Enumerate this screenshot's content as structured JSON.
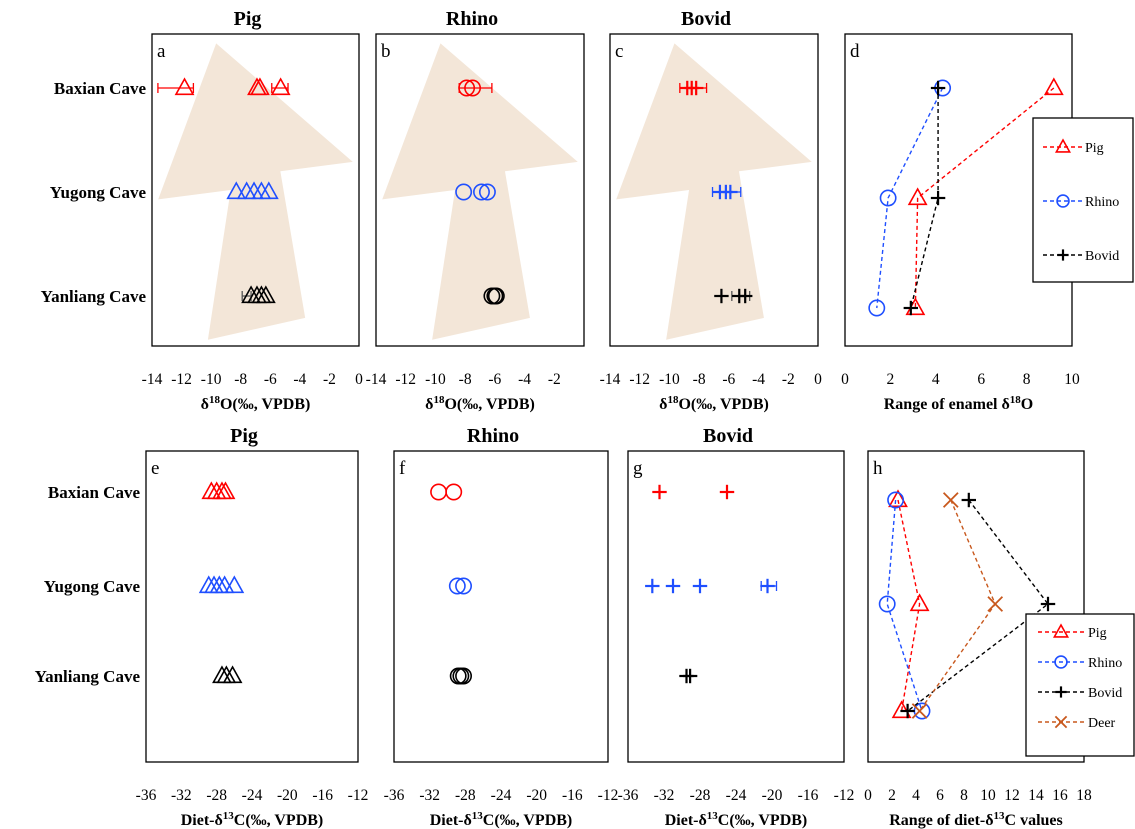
{
  "chart_data": [
    {
      "panel": "a",
      "type": "scatter",
      "title": "Pig",
      "marker": "triangle",
      "xlabel_pre": "δ",
      "xlabel_sup": "18",
      "xlabel_post": "O(‰, VPDB)",
      "xlim": [
        -14,
        0
      ],
      "xticks": [
        -14,
        -12,
        -10,
        -8,
        -6,
        -4,
        -2,
        0
      ],
      "categories": [
        "Baxian Cave",
        "Yugong Cave",
        "Yanliang Cave"
      ],
      "series": [
        {
          "category": "Baxian Cave",
          "color": "#ff0000",
          "points": [
            -11.8,
            -6.9,
            -6.7,
            -5.3
          ],
          "errors": [
            [
              -13.6,
              -11.2
            ],
            [
              -5.9,
              -4.8
            ]
          ]
        },
        {
          "category": "Yugong Cave",
          "color": "#1f4fff",
          "points": [
            -8.3,
            -7.6,
            -7.1,
            -6.6,
            -6.1
          ],
          "errors": []
        },
        {
          "category": "Yanliang Cave",
          "color": "#000000",
          "points": [
            -7.3,
            -6.9,
            -6.6,
            -6.3
          ],
          "errors": [
            [
              -7.9,
              -7.3
            ]
          ]
        }
      ],
      "arrow": true
    },
    {
      "panel": "b",
      "type": "scatter",
      "title": "Rhino",
      "marker": "circle",
      "xlabel_pre": "δ",
      "xlabel_sup": "18",
      "xlabel_post": "O(‰, VPDB)",
      "xlim": [
        -14,
        0
      ],
      "xticks": [
        -14,
        -12,
        -10,
        -8,
        -6,
        -4,
        -2
      ],
      "categories": [
        "Baxian Cave",
        "Yugong Cave",
        "Yanliang Cave"
      ],
      "series": [
        {
          "category": "Baxian Cave",
          "color": "#ff0000",
          "points": [
            -7.9,
            -7.5
          ],
          "errors": [
            [
              -8.4,
              -6.2
            ]
          ]
        },
        {
          "category": "Yugong Cave",
          "color": "#1f4fff",
          "points": [
            -8.1,
            -6.9,
            -6.5
          ],
          "errors": []
        },
        {
          "category": "Yanliang Cave",
          "color": "#000000",
          "points": [
            -6.2,
            -6.0,
            -5.9
          ],
          "errors": []
        }
      ],
      "arrow": true
    },
    {
      "panel": "c",
      "type": "scatter",
      "title": "Bovid",
      "marker": "plus",
      "xlabel_pre": "δ",
      "xlabel_sup": "18",
      "xlabel_post": "O(‰, VPDB)",
      "xlim": [
        -14,
        0
      ],
      "xticks": [
        -14,
        -12,
        -10,
        -8,
        -6,
        -4,
        -2,
        0
      ],
      "categories": [
        "Baxian Cave",
        "Yugong Cave",
        "Yanliang Cave"
      ],
      "series": [
        {
          "category": "Baxian Cave",
          "color": "#ff0000",
          "points": [
            -8.8,
            -8.5,
            -8.2
          ],
          "errors": [
            [
              -9.3,
              -7.5
            ]
          ]
        },
        {
          "category": "Yugong Cave",
          "color": "#1f4fff",
          "points": [
            -6.6,
            -6.2,
            -5.9
          ],
          "errors": [
            [
              -7.1,
              -5.2
            ]
          ]
        },
        {
          "category": "Yanliang Cave",
          "color": "#000000",
          "points": [
            -6.5,
            -5.3,
            -4.9
          ],
          "errors": [
            [
              -5.8,
              -4.6
            ]
          ]
        }
      ],
      "arrow": true
    },
    {
      "panel": "d",
      "type": "line",
      "xlabel": "Range of enamel δ18O",
      "xlabel_pre": "Range of enamel δ",
      "xlabel_sup": "18",
      "xlabel_post": "O",
      "xlim": [
        0,
        10
      ],
      "xticks": [
        0,
        2,
        4,
        6,
        8,
        10
      ],
      "categories": [
        "Baxian Cave",
        "Yugong Cave",
        "Yanliang Cave"
      ],
      "series": [
        {
          "name": "Pig",
          "color": "#ff0000",
          "marker": "triangle",
          "values": [
            9.2,
            3.2,
            3.1
          ]
        },
        {
          "name": "Rhino",
          "color": "#1f4fff",
          "marker": "circle",
          "values": [
            4.3,
            1.9,
            1.4
          ]
        },
        {
          "name": "Bovid",
          "color": "#000000",
          "marker": "plus",
          "values": [
            4.1,
            4.1,
            2.9
          ]
        }
      ],
      "legend": "right"
    },
    {
      "panel": "e",
      "type": "scatter",
      "title": "Pig",
      "marker": "triangle",
      "xlabel_pre": "Diet-δ",
      "xlabel_sup": "13",
      "xlabel_post": "C(‰, VPDB)",
      "xlim": [
        -36,
        -12
      ],
      "xticks": [
        -36,
        -32,
        -28,
        -24,
        -20,
        -16,
        -12
      ],
      "categories": [
        "Baxian Cave",
        "Yugong Cave",
        "Yanliang Cave"
      ],
      "series": [
        {
          "category": "Baxian Cave",
          "color": "#ff0000",
          "points": [
            -28.6,
            -28.0,
            -27.4,
            -27.0
          ],
          "errors": []
        },
        {
          "category": "Yugong Cave",
          "color": "#1f4fff",
          "points": [
            -28.9,
            -28.3,
            -27.7,
            -27.1,
            -26.0
          ],
          "errors": []
        },
        {
          "category": "Yanliang Cave",
          "color": "#000000",
          "points": [
            -27.4,
            -26.9,
            -26.2
          ],
          "errors": []
        }
      ]
    },
    {
      "panel": "f",
      "type": "scatter",
      "title": "Rhino",
      "marker": "circle",
      "xlabel_pre": "Diet-δ",
      "xlabel_sup": "13",
      "xlabel_post": "C(‰, VPDB)",
      "xlim": [
        -36,
        -12
      ],
      "xticks": [
        -36,
        -32,
        -28,
        -24,
        -20,
        -16,
        -12
      ],
      "categories": [
        "Baxian Cave",
        "Yugong Cave",
        "Yanliang Cave"
      ],
      "series": [
        {
          "category": "Baxian Cave",
          "color": "#ff0000",
          "points": [
            -31.0,
            -29.3
          ],
          "errors": []
        },
        {
          "category": "Yugong Cave",
          "color": "#1f4fff",
          "points": [
            -28.9,
            -28.2
          ],
          "errors": []
        },
        {
          "category": "Yanliang Cave",
          "color": "#000000",
          "points": [
            -28.8,
            -28.5,
            -28.2
          ],
          "errors": []
        }
      ]
    },
    {
      "panel": "g",
      "type": "scatter",
      "title": "Bovid",
      "marker": "plus",
      "xlabel_pre": "Diet-δ",
      "xlabel_sup": "13",
      "xlabel_post": "C(‰, VPDB)",
      "xlim": [
        -36,
        -12
      ],
      "xticks": [
        -36,
        -32,
        -28,
        -24,
        -20,
        -16,
        -12
      ],
      "categories": [
        "Baxian Cave",
        "Yugong Cave",
        "Yanliang Cave"
      ],
      "series": [
        {
          "category": "Baxian Cave",
          "color": "#ff0000",
          "points": [
            -32.5,
            -25.0
          ],
          "errors": []
        },
        {
          "category": "Yugong Cave",
          "color": "#1f4fff",
          "points": [
            -33.3,
            -31.0,
            -28.0,
            -20.5
          ],
          "errors": [
            [
              -21.2,
              -19.5
            ]
          ]
        },
        {
          "category": "Yanliang Cave",
          "color": "#000000",
          "points": [
            -29.5,
            -29.1
          ],
          "errors": []
        }
      ]
    },
    {
      "panel": "h",
      "type": "line",
      "xlabel_pre": "Range of diet-δ",
      "xlabel_sup": "13",
      "xlabel_post": "C values",
      "xlim": [
        0,
        18
      ],
      "xticks": [
        0,
        2,
        4,
        6,
        8,
        10,
        12,
        14,
        16,
        18
      ],
      "categories": [
        "Baxian Cave",
        "Yugong Cave",
        "Yanliang Cave"
      ],
      "series": [
        {
          "name": "Pig",
          "color": "#ff0000",
          "marker": "triangle",
          "values": [
            2.5,
            4.3,
            2.8
          ]
        },
        {
          "name": "Rhino",
          "color": "#1f4fff",
          "marker": "circle",
          "values": [
            2.3,
            1.6,
            4.5
          ]
        },
        {
          "name": "Bovid",
          "color": "#000000",
          "marker": "plus",
          "values": [
            8.4,
            15.0,
            3.3
          ]
        },
        {
          "name": "Deer",
          "color": "#c8581d",
          "marker": "x",
          "values": [
            6.9,
            10.6,
            4.3
          ]
        }
      ],
      "legend": "bottom-right"
    }
  ]
}
